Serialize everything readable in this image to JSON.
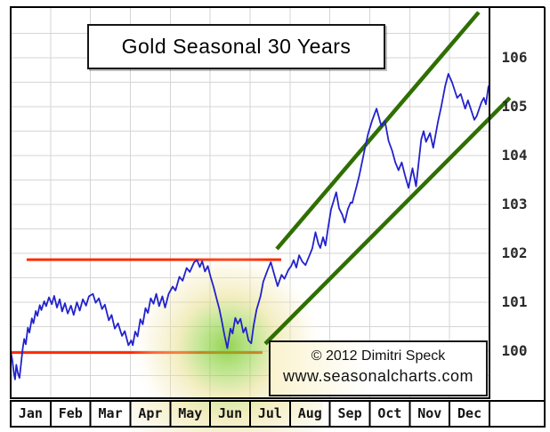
{
  "title": "Gold Seasonal 30 Years",
  "watermark": {
    "line1": "© 2012  Dimitri Speck",
    "line2": "www.seasonalcharts.com"
  },
  "colors": {
    "line_blue": "#2222cc",
    "marker_red": "#ff2a00",
    "channel_green": "#2f6f00",
    "grid": "#d5d5d5",
    "frame": "#000000",
    "glow_core": "#78c828",
    "glow_mid": "#e6dc82",
    "glow_halo": "#f2e8b4",
    "text": "#1a1a1a"
  },
  "chart_data": {
    "type": "line",
    "title": "Gold Seasonal 30 Years",
    "x_axis": {
      "unit": "month",
      "categories": [
        "Jan",
        "Feb",
        "Mar",
        "Apr",
        "May",
        "Jun",
        "Jul",
        "Aug",
        "Sep",
        "Oct",
        "Nov",
        "Dec"
      ],
      "range": [
        0,
        12
      ],
      "gridlines": "month-boundaries"
    },
    "y_axis": {
      "side": "right",
      "ticks": [
        106,
        105,
        104,
        103,
        102,
        101,
        100
      ],
      "range": [
        99.0,
        107.0
      ],
      "gridline_step": 0.5
    },
    "series": [
      {
        "name": "gold-seasonal-pattern-30y",
        "color": "#2222cc",
        "points": [
          [
            0.0,
            100.0
          ],
          [
            0.04,
            99.82
          ],
          [
            0.08,
            99.55
          ],
          [
            0.11,
            99.42
          ],
          [
            0.14,
            99.72
          ],
          [
            0.18,
            99.55
          ],
          [
            0.22,
            99.45
          ],
          [
            0.26,
            99.75
          ],
          [
            0.3,
            100.05
          ],
          [
            0.34,
            100.25
          ],
          [
            0.38,
            100.14
          ],
          [
            0.43,
            100.48
          ],
          [
            0.47,
            100.38
          ],
          [
            0.53,
            100.67
          ],
          [
            0.57,
            100.57
          ],
          [
            0.63,
            100.82
          ],
          [
            0.67,
            100.72
          ],
          [
            0.73,
            100.94
          ],
          [
            0.77,
            100.84
          ],
          [
            0.84,
            101.02
          ],
          [
            0.89,
            100.92
          ],
          [
            0.96,
            101.1
          ],
          [
            1.03,
            100.96
          ],
          [
            1.09,
            101.13
          ],
          [
            1.16,
            100.89
          ],
          [
            1.23,
            101.06
          ],
          [
            1.29,
            100.81
          ],
          [
            1.36,
            100.98
          ],
          [
            1.43,
            100.77
          ],
          [
            1.51,
            100.93
          ],
          [
            1.58,
            100.74
          ],
          [
            1.66,
            101.0
          ],
          [
            1.73,
            100.83
          ],
          [
            1.81,
            101.06
          ],
          [
            1.89,
            100.93
          ],
          [
            1.96,
            101.12
          ],
          [
            2.06,
            101.17
          ],
          [
            2.13,
            100.99
          ],
          [
            2.21,
            101.08
          ],
          [
            2.29,
            100.86
          ],
          [
            2.36,
            100.95
          ],
          [
            2.46,
            100.63
          ],
          [
            2.53,
            100.74
          ],
          [
            2.61,
            100.46
          ],
          [
            2.69,
            100.57
          ],
          [
            2.79,
            100.31
          ],
          [
            2.86,
            100.41
          ],
          [
            2.95,
            100.12
          ],
          [
            3.02,
            100.22
          ],
          [
            3.06,
            100.12
          ],
          [
            3.12,
            100.4
          ],
          [
            3.18,
            100.3
          ],
          [
            3.25,
            100.65
          ],
          [
            3.31,
            100.55
          ],
          [
            3.38,
            100.88
          ],
          [
            3.44,
            100.78
          ],
          [
            3.51,
            101.08
          ],
          [
            3.58,
            100.97
          ],
          [
            3.65,
            101.17
          ],
          [
            3.72,
            100.92
          ],
          [
            3.8,
            101.12
          ],
          [
            3.87,
            100.89
          ],
          [
            3.96,
            101.17
          ],
          [
            4.06,
            101.32
          ],
          [
            4.13,
            101.24
          ],
          [
            4.23,
            101.52
          ],
          [
            4.31,
            101.44
          ],
          [
            4.41,
            101.7
          ],
          [
            4.49,
            101.62
          ],
          [
            4.6,
            101.82
          ],
          [
            4.67,
            101.86
          ],
          [
            4.74,
            101.72
          ],
          [
            4.8,
            101.84
          ],
          [
            4.87,
            101.63
          ],
          [
            4.94,
            101.74
          ],
          [
            5.01,
            101.52
          ],
          [
            5.09,
            101.3
          ],
          [
            5.16,
            101.08
          ],
          [
            5.23,
            100.86
          ],
          [
            5.29,
            100.62
          ],
          [
            5.36,
            100.32
          ],
          [
            5.43,
            100.06
          ],
          [
            5.51,
            100.46
          ],
          [
            5.56,
            100.36
          ],
          [
            5.63,
            100.68
          ],
          [
            5.69,
            100.56
          ],
          [
            5.76,
            100.66
          ],
          [
            5.83,
            100.38
          ],
          [
            5.89,
            100.48
          ],
          [
            5.96,
            100.22
          ],
          [
            6.03,
            100.16
          ],
          [
            6.09,
            100.52
          ],
          [
            6.16,
            100.84
          ],
          [
            6.26,
            101.12
          ],
          [
            6.33,
            101.42
          ],
          [
            6.43,
            101.64
          ],
          [
            6.52,
            101.82
          ],
          [
            6.61,
            101.56
          ],
          [
            6.69,
            101.33
          ],
          [
            6.79,
            101.56
          ],
          [
            6.86,
            101.48
          ],
          [
            6.96,
            101.66
          ],
          [
            7.03,
            101.74
          ],
          [
            7.09,
            101.86
          ],
          [
            7.16,
            101.71
          ],
          [
            7.23,
            101.96
          ],
          [
            7.31,
            101.83
          ],
          [
            7.39,
            101.76
          ],
          [
            7.49,
            101.96
          ],
          [
            7.56,
            102.1
          ],
          [
            7.64,
            102.43
          ],
          [
            7.71,
            102.2
          ],
          [
            7.76,
            102.11
          ],
          [
            7.83,
            102.33
          ],
          [
            7.89,
            102.16
          ],
          [
            7.96,
            102.55
          ],
          [
            8.03,
            102.9
          ],
          [
            8.09,
            103.06
          ],
          [
            8.16,
            103.25
          ],
          [
            8.23,
            102.92
          ],
          [
            8.31,
            102.79
          ],
          [
            8.37,
            102.63
          ],
          [
            8.45,
            102.9
          ],
          [
            8.52,
            103.04
          ],
          [
            8.56,
            103.03
          ],
          [
            8.63,
            103.25
          ],
          [
            8.67,
            103.37
          ],
          [
            8.74,
            103.6
          ],
          [
            8.83,
            103.96
          ],
          [
            8.89,
            104.2
          ],
          [
            8.96,
            104.45
          ],
          [
            9.06,
            104.72
          ],
          [
            9.17,
            104.96
          ],
          [
            9.29,
            104.6
          ],
          [
            9.38,
            104.71
          ],
          [
            9.47,
            104.3
          ],
          [
            9.56,
            104.1
          ],
          [
            9.64,
            103.86
          ],
          [
            9.72,
            103.7
          ],
          [
            9.8,
            103.86
          ],
          [
            9.88,
            103.6
          ],
          [
            9.94,
            103.43
          ],
          [
            9.97,
            103.34
          ],
          [
            10.07,
            103.74
          ],
          [
            10.16,
            103.37
          ],
          [
            10.29,
            104.33
          ],
          [
            10.35,
            104.5
          ],
          [
            10.41,
            104.28
          ],
          [
            10.51,
            104.46
          ],
          [
            10.59,
            104.16
          ],
          [
            10.71,
            104.7
          ],
          [
            10.79,
            105.0
          ],
          [
            10.89,
            105.42
          ],
          [
            10.97,
            105.67
          ],
          [
            11.06,
            105.5
          ],
          [
            11.19,
            105.18
          ],
          [
            11.28,
            105.26
          ],
          [
            11.39,
            104.96
          ],
          [
            11.46,
            105.13
          ],
          [
            11.62,
            104.73
          ],
          [
            11.68,
            104.81
          ],
          [
            11.8,
            105.09
          ],
          [
            11.86,
            105.18
          ],
          [
            11.91,
            105.05
          ],
          [
            11.97,
            105.4
          ],
          [
            12.0,
            105.45
          ]
        ]
      }
    ],
    "annotations": {
      "resistance_line": {
        "level": 101.87,
        "x_from": 0.4,
        "x_to": 6.78,
        "color": "#ff2a00"
      },
      "support_line": {
        "level": 99.97,
        "x_from": 0.02,
        "x_to": 6.31,
        "color": "#ff2a00"
      },
      "channel_upper": {
        "from": [
          6.67,
          102.09
        ],
        "to": [
          11.73,
          106.93
        ],
        "color": "#2f6f00"
      },
      "channel_lower": {
        "from": [
          6.38,
          100.15
        ],
        "to": [
          12.51,
          105.18
        ],
        "color": "#2f6f00"
      },
      "seasonal_low_highlight": {
        "x": 5.43,
        "level": 100.1,
        "radius_px": 108,
        "note": "green-yellow glow over June low"
      }
    },
    "legend": "none",
    "grid": "on"
  }
}
